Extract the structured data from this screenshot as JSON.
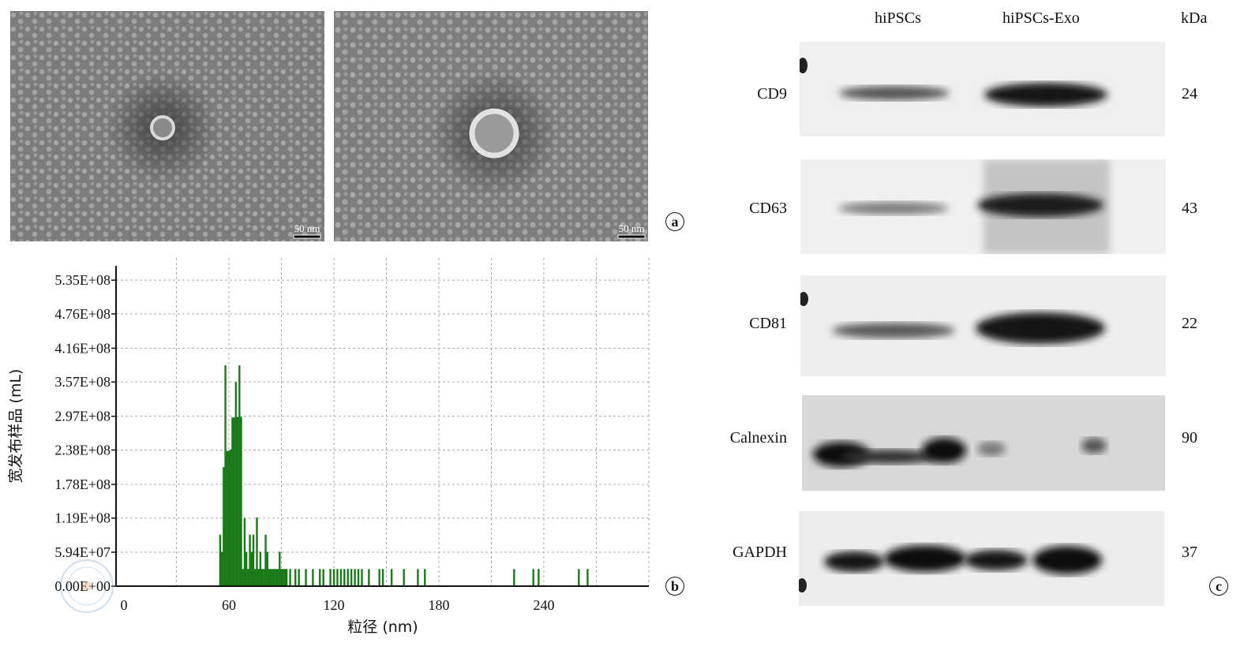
{
  "panels": {
    "a": {
      "badge": "a",
      "scale_bars": [
        "50 nm",
        "50 nm"
      ]
    },
    "b": {
      "badge": "b"
    },
    "c": {
      "badge": "c"
    }
  },
  "chart_data": {
    "type": "bar",
    "xlabel": "粒径 (nm)",
    "ylabel": "宽发布样品 (mL)",
    "xlim": [
      0,
      300
    ],
    "ylim": [
      0,
      560000000.0
    ],
    "x_ticks": [
      "0",
      "60",
      "120",
      "180",
      "240"
    ],
    "x_tick_values": [
      0,
      60,
      120,
      180,
      240
    ],
    "y_ticks": [
      "0.00E+00",
      "5.94E+07",
      "1.19E+08",
      "1.78E+08",
      "2.38E+08",
      "2.97E+08",
      "3.57E+08",
      "4.16E+08",
      "4.76E+08",
      "5.35E+08"
    ],
    "y_tick_values": [
      0,
      59400000.0,
      119000000.0,
      178000000.0,
      238000000.0,
      297000000.0,
      357000000.0,
      416000000.0,
      476000000.0,
      535000000.0
    ],
    "grid": true,
    "color": "#1a7a1a",
    "x": [
      55,
      56,
      57,
      58,
      59,
      60,
      61,
      62,
      63,
      64,
      65,
      66,
      67,
      68,
      69,
      70,
      71,
      72,
      73,
      74,
      75,
      76,
      77,
      78,
      79,
      80,
      81,
      82,
      83,
      84,
      85,
      86,
      87,
      88,
      89,
      90,
      91,
      92,
      93,
      95,
      98,
      100,
      104,
      108,
      112,
      114,
      118,
      120,
      122,
      124,
      126,
      128,
      130,
      132,
      134,
      136,
      140,
      146,
      148,
      153,
      160,
      168,
      172,
      223,
      234,
      237,
      260,
      265
    ],
    "values": [
      90000000.0,
      60000000.0,
      208000000.0,
      386000000.0,
      236000000.0,
      237000000.0,
      239000000.0,
      295000000.0,
      295000000.0,
      357000000.0,
      296000000.0,
      386000000.0,
      296000000.0,
      30000000.0,
      119000000.0,
      60000000.0,
      30000000.0,
      90000000.0,
      60000000.0,
      90000000.0,
      30000000.0,
      120000000.0,
      30000000.0,
      60000000.0,
      30000000.0,
      30000000.0,
      90000000.0,
      60000000.0,
      30000000.0,
      30000000.0,
      30000000.0,
      30000000.0,
      30000000.0,
      30000000.0,
      60000000.0,
      30000000.0,
      30000000.0,
      30000000.0,
      30000000.0,
      30000000.0,
      30000000.0,
      30000000.0,
      30000000.0,
      30000000.0,
      30000000.0,
      30000000.0,
      30000000.0,
      30000000.0,
      30000000.0,
      30000000.0,
      30000000.0,
      30000000.0,
      30000000.0,
      30000000.0,
      30000000.0,
      30000000.0,
      30000000.0,
      30000000.0,
      30000000.0,
      30000000.0,
      30000000.0,
      30000000.0,
      30000000.0,
      30000000.0,
      30000000.0,
      30000000.0,
      30000000.0,
      30000000.0
    ]
  },
  "western_blot": {
    "columns": [
      "hiPSCs",
      "hiPSCs-Exo"
    ],
    "kda_header": "kDa",
    "rows": [
      {
        "label": "CD9",
        "kda": "24"
      },
      {
        "label": "CD63",
        "kda": "43"
      },
      {
        "label": "CD81",
        "kda": "22"
      },
      {
        "label": "Calnexin",
        "kda": "90"
      },
      {
        "label": "GAPDH",
        "kda": "37"
      }
    ]
  }
}
